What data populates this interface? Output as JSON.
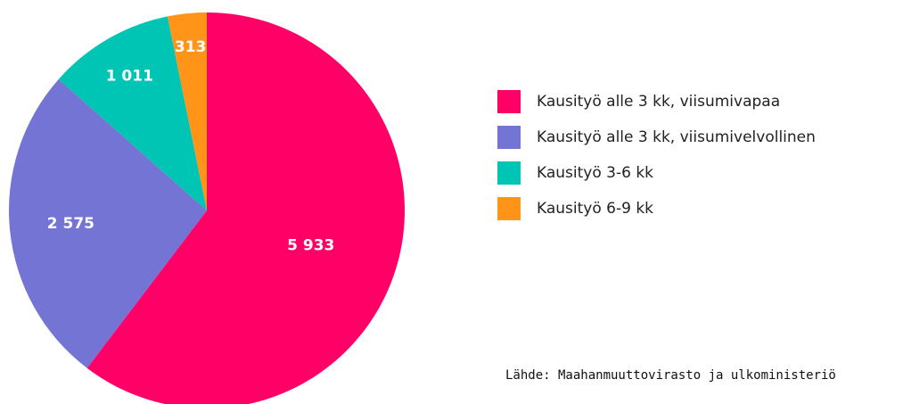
{
  "chart_data": {
    "type": "pie",
    "categories": [
      "Kausityö alle 3 kk, viisumivapaa",
      "Kausityö alle 3 kk, viisumivelvollinen",
      "Kausityö 3-6 kk",
      "Kausityö 6-9 kk"
    ],
    "values": [
      5933,
      2575,
      1011,
      313
    ],
    "value_labels": [
      "5 933",
      "2 575",
      "1 011",
      "313"
    ],
    "colors": [
      "#ff0066",
      "#7474d4",
      "#00c4b4",
      "#ff9418"
    ],
    "legend": "right",
    "source": "Lähde: Maahanmuuttovirasto ja ulkoministeriö"
  }
}
